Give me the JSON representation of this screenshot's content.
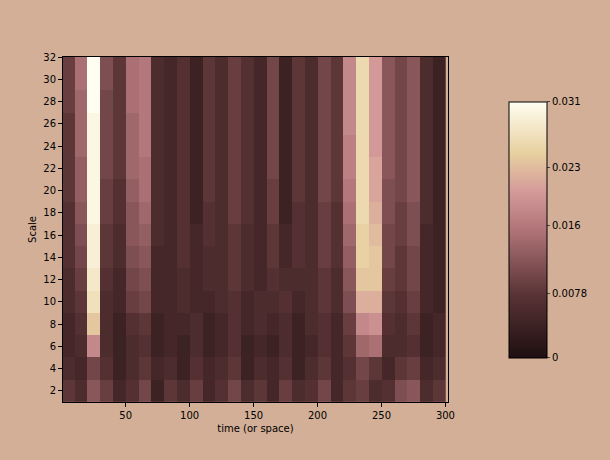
{
  "chart_data": {
    "type": "heatmap",
    "x_label": "time (or space)",
    "y_label": "Scale",
    "x": [
      5,
      15,
      25,
      35,
      45,
      55,
      65,
      75,
      85,
      95,
      105,
      115,
      125,
      135,
      145,
      155,
      165,
      175,
      185,
      195,
      205,
      215,
      225,
      235,
      245,
      255,
      265,
      275,
      285,
      295
    ],
    "y": [
      2,
      4,
      6,
      8,
      10,
      12,
      14,
      16,
      18,
      20,
      22,
      24,
      26,
      28,
      30,
      32
    ],
    "z": [
      [
        0.008,
        0.006,
        0.012,
        0.009,
        0.005,
        0.007,
        0.01,
        0.004,
        0.008,
        0.006,
        0.009,
        0.005,
        0.007,
        0.01,
        0.006,
        0.008,
        0.005,
        0.009,
        0.006,
        0.007,
        0.01,
        0.005,
        0.008,
        0.009,
        0.006,
        0.007,
        0.011,
        0.012,
        0.006,
        0.008
      ],
      [
        0.006,
        0.005,
        0.01,
        0.007,
        0.004,
        0.006,
        0.008,
        0.005,
        0.006,
        0.004,
        0.007,
        0.005,
        0.006,
        0.008,
        0.004,
        0.006,
        0.005,
        0.007,
        0.004,
        0.006,
        0.008,
        0.005,
        0.007,
        0.01,
        0.008,
        0.005,
        0.008,
        0.009,
        0.005,
        0.006
      ],
      [
        0.005,
        0.006,
        0.018,
        0.006,
        0.004,
        0.006,
        0.007,
        0.004,
        0.005,
        0.004,
        0.006,
        0.004,
        0.005,
        0.007,
        0.004,
        0.005,
        0.004,
        0.006,
        0.004,
        0.005,
        0.007,
        0.005,
        0.008,
        0.014,
        0.015,
        0.006,
        0.006,
        0.007,
        0.004,
        0.005
      ],
      [
        0.005,
        0.007,
        0.024,
        0.006,
        0.004,
        0.007,
        0.008,
        0.004,
        0.005,
        0.005,
        0.006,
        0.004,
        0.005,
        0.007,
        0.005,
        0.006,
        0.005,
        0.006,
        0.004,
        0.006,
        0.007,
        0.005,
        0.009,
        0.018,
        0.019,
        0.007,
        0.006,
        0.008,
        0.004,
        0.005
      ],
      [
        0.006,
        0.008,
        0.027,
        0.006,
        0.005,
        0.009,
        0.01,
        0.005,
        0.005,
        0.006,
        0.005,
        0.005,
        0.006,
        0.007,
        0.005,
        0.006,
        0.006,
        0.007,
        0.005,
        0.006,
        0.008,
        0.006,
        0.011,
        0.022,
        0.022,
        0.008,
        0.007,
        0.009,
        0.005,
        0.004
      ],
      [
        0.006,
        0.009,
        0.028,
        0.007,
        0.005,
        0.01,
        0.011,
        0.005,
        0.005,
        0.006,
        0.005,
        0.006,
        0.006,
        0.008,
        0.006,
        0.005,
        0.007,
        0.006,
        0.006,
        0.006,
        0.008,
        0.006,
        0.012,
        0.024,
        0.024,
        0.009,
        0.008,
        0.01,
        0.005,
        0.004
      ],
      [
        0.007,
        0.01,
        0.029,
        0.008,
        0.006,
        0.011,
        0.012,
        0.005,
        0.005,
        0.007,
        0.005,
        0.006,
        0.006,
        0.008,
        0.006,
        0.005,
        0.008,
        0.005,
        0.007,
        0.006,
        0.009,
        0.007,
        0.013,
        0.025,
        0.024,
        0.01,
        0.008,
        0.01,
        0.005,
        0.004
      ],
      [
        0.007,
        0.011,
        0.029,
        0.008,
        0.006,
        0.012,
        0.013,
        0.006,
        0.005,
        0.007,
        0.005,
        0.007,
        0.006,
        0.008,
        0.006,
        0.005,
        0.008,
        0.005,
        0.007,
        0.006,
        0.009,
        0.007,
        0.014,
        0.025,
        0.023,
        0.01,
        0.009,
        0.011,
        0.005,
        0.004
      ],
      [
        0.007,
        0.012,
        0.03,
        0.009,
        0.007,
        0.012,
        0.014,
        0.006,
        0.005,
        0.007,
        0.004,
        0.007,
        0.006,
        0.009,
        0.007,
        0.005,
        0.009,
        0.004,
        0.007,
        0.006,
        0.009,
        0.007,
        0.015,
        0.026,
        0.022,
        0.011,
        0.009,
        0.011,
        0.006,
        0.004
      ],
      [
        0.008,
        0.013,
        0.03,
        0.009,
        0.007,
        0.013,
        0.015,
        0.006,
        0.005,
        0.007,
        0.004,
        0.008,
        0.006,
        0.009,
        0.007,
        0.005,
        0.009,
        0.004,
        0.008,
        0.006,
        0.01,
        0.008,
        0.016,
        0.026,
        0.021,
        0.011,
        0.01,
        0.012,
        0.006,
        0.004
      ],
      [
        0.008,
        0.013,
        0.03,
        0.01,
        0.008,
        0.014,
        0.015,
        0.006,
        0.005,
        0.007,
        0.004,
        0.008,
        0.006,
        0.009,
        0.007,
        0.005,
        0.01,
        0.004,
        0.008,
        0.006,
        0.01,
        0.008,
        0.017,
        0.026,
        0.021,
        0.012,
        0.01,
        0.012,
        0.006,
        0.004
      ],
      [
        0.008,
        0.014,
        0.03,
        0.01,
        0.008,
        0.014,
        0.016,
        0.006,
        0.005,
        0.007,
        0.004,
        0.008,
        0.006,
        0.009,
        0.007,
        0.005,
        0.01,
        0.004,
        0.008,
        0.006,
        0.01,
        0.008,
        0.017,
        0.026,
        0.02,
        0.012,
        0.01,
        0.012,
        0.006,
        0.004
      ],
      [
        0.008,
        0.014,
        0.03,
        0.01,
        0.008,
        0.014,
        0.016,
        0.006,
        0.005,
        0.007,
        0.004,
        0.008,
        0.006,
        0.009,
        0.007,
        0.005,
        0.01,
        0.004,
        0.008,
        0.006,
        0.01,
        0.008,
        0.018,
        0.026,
        0.02,
        0.012,
        0.01,
        0.012,
        0.006,
        0.004
      ],
      [
        0.009,
        0.014,
        0.031,
        0.01,
        0.008,
        0.015,
        0.016,
        0.006,
        0.005,
        0.007,
        0.004,
        0.008,
        0.006,
        0.009,
        0.007,
        0.005,
        0.01,
        0.004,
        0.008,
        0.006,
        0.01,
        0.008,
        0.018,
        0.026,
        0.02,
        0.012,
        0.01,
        0.012,
        0.006,
        0.004
      ],
      [
        0.009,
        0.015,
        0.031,
        0.011,
        0.008,
        0.015,
        0.016,
        0.006,
        0.005,
        0.007,
        0.004,
        0.008,
        0.006,
        0.009,
        0.007,
        0.005,
        0.01,
        0.004,
        0.008,
        0.006,
        0.01,
        0.008,
        0.018,
        0.026,
        0.02,
        0.012,
        0.01,
        0.012,
        0.006,
        0.004
      ],
      [
        0.009,
        0.015,
        0.031,
        0.011,
        0.008,
        0.015,
        0.016,
        0.006,
        0.005,
        0.007,
        0.004,
        0.008,
        0.006,
        0.009,
        0.007,
        0.005,
        0.01,
        0.004,
        0.008,
        0.006,
        0.01,
        0.008,
        0.018,
        0.026,
        0.02,
        0.012,
        0.01,
        0.012,
        0.006,
        0.004
      ]
    ],
    "xlim": [
      1,
      302
    ],
    "xticks": [
      50,
      100,
      150,
      200,
      250,
      300
    ],
    "ylim": [
      1,
      32
    ],
    "yticks": [
      2,
      4,
      6,
      8,
      10,
      12,
      14,
      16,
      18,
      20,
      22,
      24,
      26,
      28,
      30,
      32
    ],
    "colorbar": {
      "range": [
        0,
        0.031
      ],
      "ticks": [
        0,
        0.0078,
        0.016,
        0.023,
        0.031
      ]
    }
  }
}
